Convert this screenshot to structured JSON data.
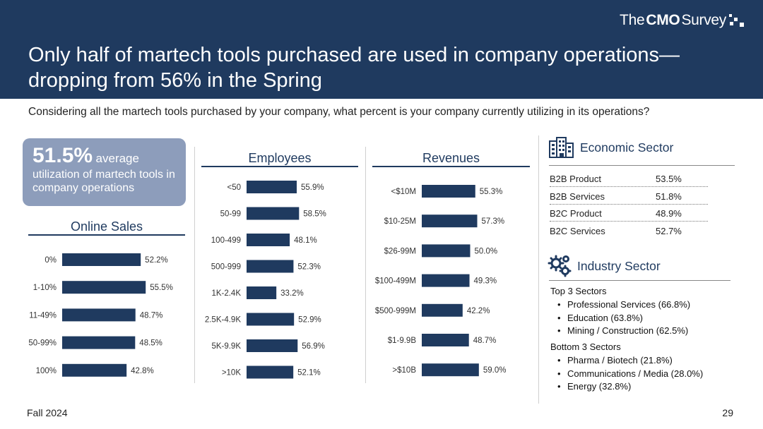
{
  "header": {
    "brand_the": "The",
    "brand_cmo": "CMO",
    "brand_survey": "Survey",
    "title": "Only half of martech tools purchased are used in company operations—dropping from 56% in the Spring"
  },
  "question": "Considering all the martech tools purchased by your company, what percent is your company currently utilizing in its operations?",
  "callout": {
    "value": "51.5%",
    "suffix": "average",
    "description": "utilization of martech tools in company operations"
  },
  "colors": {
    "header_bg": "#1f3a5f",
    "bar": "#1f3a5f",
    "callout_bg": "#8d9dbb"
  },
  "chart_data": [
    {
      "type": "bar",
      "title": "Online Sales",
      "categories": [
        "0%",
        "1-10%",
        "11-49%",
        "50-99%",
        "100%"
      ],
      "values": [
        52.2,
        55.5,
        48.7,
        48.5,
        42.8
      ],
      "labels": [
        "52.2%",
        "55.5%",
        "48.7%",
        "48.5%",
        "42.8%"
      ],
      "orientation": "horizontal"
    },
    {
      "type": "bar",
      "title": "Employees",
      "categories": [
        "<50",
        "50-99",
        "100-499",
        "500-999",
        "1K-2.4K",
        "2.5K-4.9K",
        "5K-9.9K",
        ">10K"
      ],
      "values": [
        55.9,
        58.5,
        48.1,
        52.3,
        33.2,
        52.9,
        56.9,
        52.1
      ],
      "labels": [
        "55.9%",
        "58.5%",
        "48.1%",
        "52.3%",
        "33.2%",
        "52.9%",
        "56.9%",
        "52.1%"
      ],
      "orientation": "horizontal"
    },
    {
      "type": "bar",
      "title": "Revenues",
      "categories": [
        "<$10M",
        "$10-25M",
        "$26-99M",
        "$100-499M",
        "$500-999M",
        "$1-9.9B",
        ">$10B"
      ],
      "values": [
        55.3,
        57.3,
        50.0,
        49.3,
        42.2,
        48.7,
        59.0
      ],
      "labels": [
        "55.3%",
        "57.3%",
        "50.0%",
        "49.3%",
        "42.2%",
        "48.7%",
        "59.0%"
      ],
      "orientation": "horizontal"
    }
  ],
  "economic_sector": {
    "title": "Economic Sector",
    "icon": "buildings-icon",
    "rows": [
      {
        "label": "B2B Product",
        "value": "53.5%"
      },
      {
        "label": "B2B Services",
        "value": "51.8%"
      },
      {
        "label": "B2C Product",
        "value": "48.9%"
      },
      {
        "label": "B2C Services",
        "value": "52.7%"
      }
    ]
  },
  "industry_sector": {
    "title": "Industry Sector",
    "icon": "gears-icon",
    "top_label": "Top 3 Sectors",
    "top": [
      "Professional Services (66.8%)",
      "Education (63.8%)",
      "Mining / Construction (62.5%)"
    ],
    "bottom_label": "Bottom 3 Sectors",
    "bottom": [
      "Pharma / Biotech (21.8%)",
      "Communications / Media (28.0%)",
      "Energy (32.8%)"
    ]
  },
  "footer": {
    "season": "Fall 2024",
    "page": "29"
  }
}
